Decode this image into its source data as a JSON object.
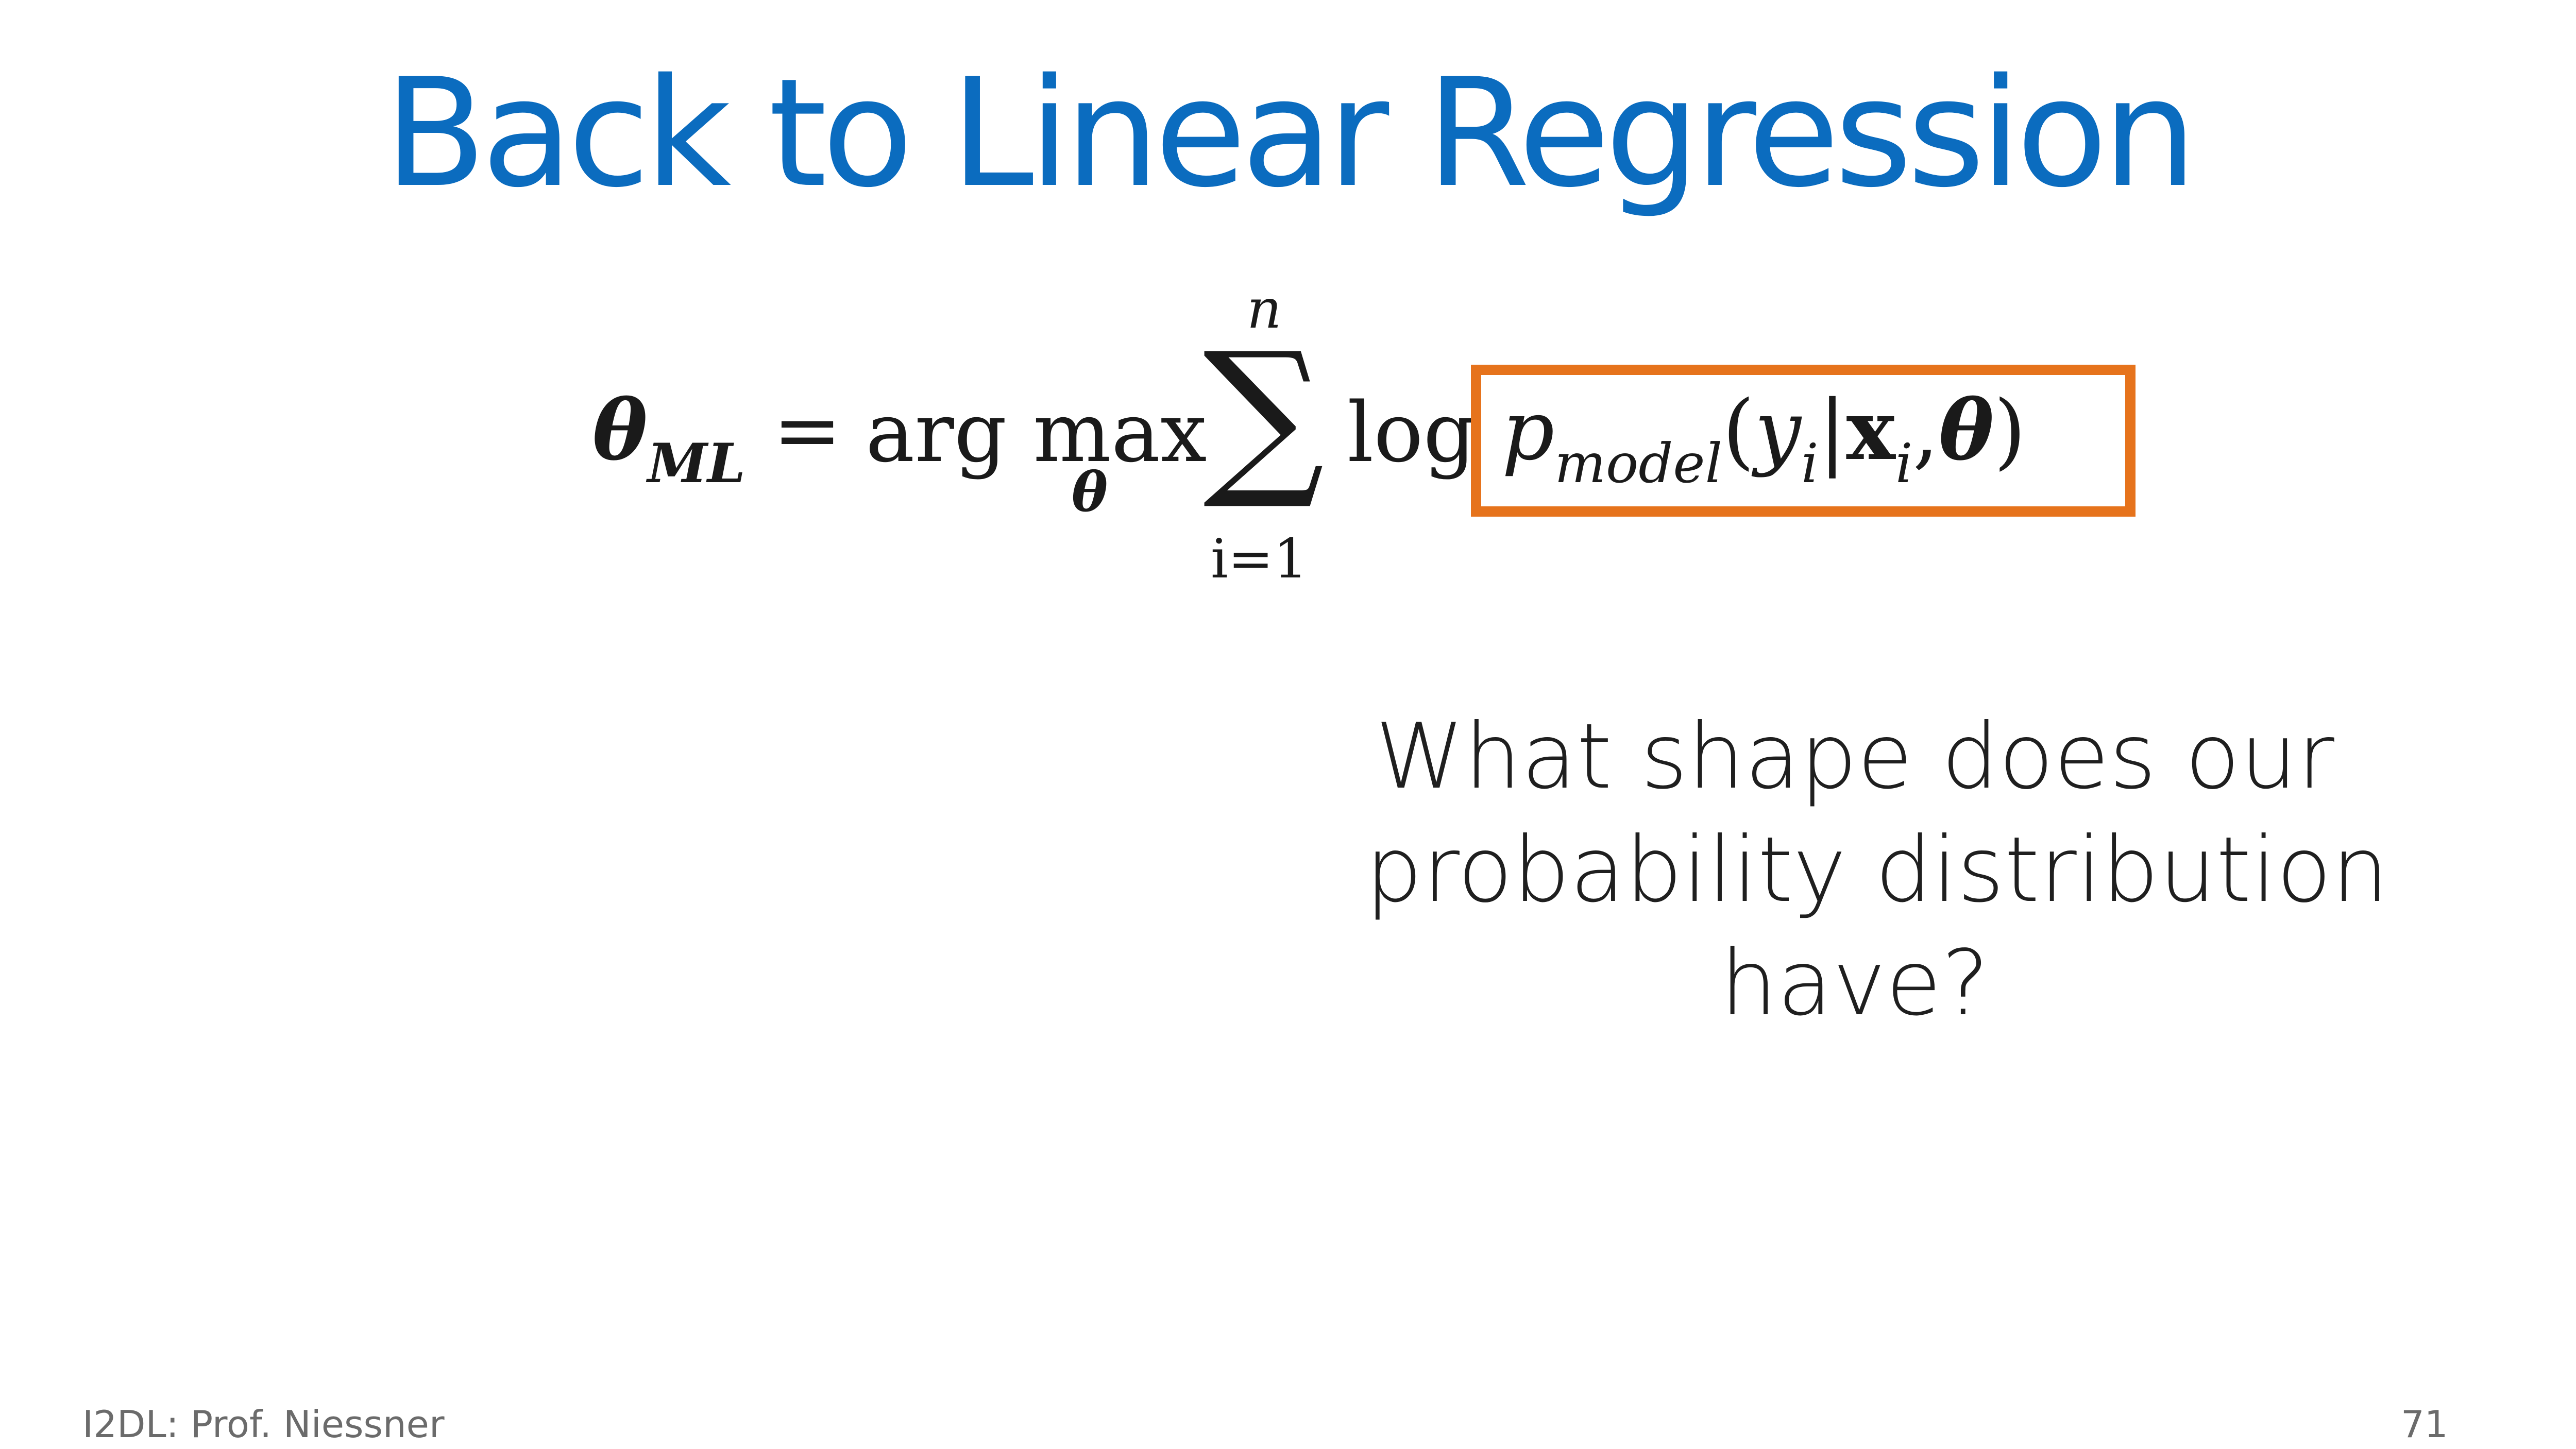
{
  "slide": {
    "title": "Back to Linear Regression",
    "equation": {
      "lhs_symbol": "θ",
      "lhs_subscript": "ML",
      "equals": "=",
      "operator": "arg max",
      "operator_under": "θ",
      "sum_upper": "n",
      "sum_symbol": "∑",
      "sum_lower": "i=1",
      "log": "log",
      "boxed_p": "p",
      "boxed_p_subscript": "model",
      "boxed_open": "(",
      "boxed_y": "y",
      "boxed_y_sub": "i",
      "boxed_bar": "|",
      "boxed_x": "x",
      "boxed_x_sub": "i",
      "boxed_comma": ",",
      "boxed_theta": "θ",
      "boxed_close": ")",
      "box_color": "#e6731c"
    },
    "question_lines": [
      "What shape does our",
      "probability distribution",
      "have?"
    ],
    "footer_left": "I2DL: Prof. Niessner",
    "page_number": "71",
    "title_color": "#0b6cbf"
  }
}
